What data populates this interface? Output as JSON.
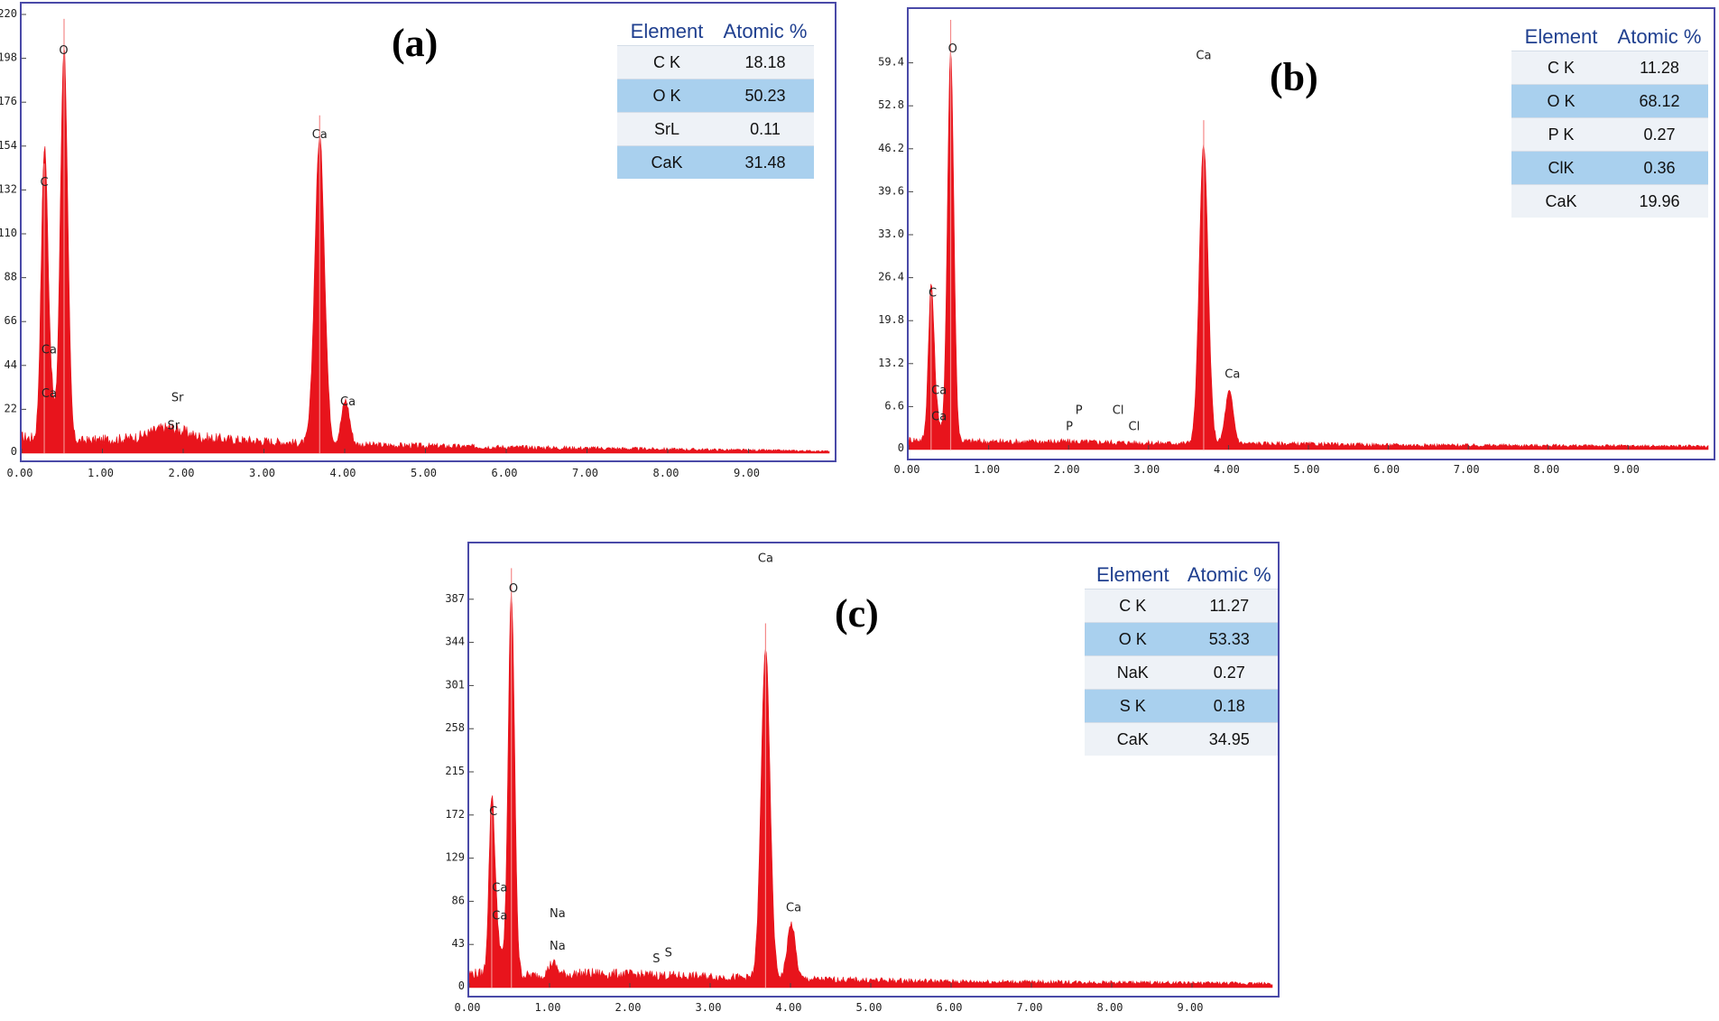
{
  "panels": [
    {
      "label": "(a)",
      "table": {
        "headers": [
          "Element",
          "Atomic %"
        ],
        "rows": [
          [
            "C K",
            "18.18"
          ],
          [
            "O K",
            "50.23"
          ],
          [
            "SrL",
            "0.11"
          ],
          [
            "CaK",
            "31.48"
          ]
        ]
      }
    },
    {
      "label": "(b)",
      "table": {
        "headers": [
          "Element",
          "Atomic %"
        ],
        "rows": [
          [
            "C K",
            "11.28"
          ],
          [
            "O K",
            "68.12"
          ],
          [
            "P K",
            "0.27"
          ],
          [
            "ClK",
            "0.36"
          ],
          [
            "CaK",
            "19.96"
          ]
        ]
      }
    },
    {
      "label": "(c)",
      "table": {
        "headers": [
          "Element",
          "Atomic %"
        ],
        "rows": [
          [
            "C K",
            "11.27"
          ],
          [
            "O K",
            "53.33"
          ],
          [
            "NaK",
            "0.27"
          ],
          [
            "S K",
            "0.18"
          ],
          [
            "CaK",
            "34.95"
          ]
        ]
      }
    }
  ],
  "chart_data": [
    {
      "type": "area",
      "panel": "a",
      "series_color": "#e8141c",
      "border_color": "#4a4aa8",
      "xlim": [
        0,
        10
      ],
      "ylim": [
        0,
        220
      ],
      "x_ticks": [
        "0.00",
        "1.00",
        "2.00",
        "3.00",
        "4.00",
        "5.00",
        "6.00",
        "7.00",
        "8.00",
        "9.00"
      ],
      "y_ticks": [
        "22",
        "44",
        "66",
        "88",
        "110",
        "132",
        "154",
        "176",
        "198",
        "220"
      ],
      "peaks": [
        {
          "x": 0.28,
          "height": 132,
          "width": 0.04
        },
        {
          "x": 0.525,
          "height": 198,
          "width": 0.045
        },
        {
          "x": 3.69,
          "height": 154,
          "width": 0.06
        },
        {
          "x": 4.01,
          "height": 22,
          "width": 0.05
        },
        {
          "x": 0.34,
          "height": 30,
          "width": 0.05
        },
        {
          "x": 1.8,
          "height": 5,
          "width": 0.2
        }
      ],
      "baseline": [
        [
          0.0,
          8
        ],
        [
          0.6,
          6
        ],
        [
          1.2,
          7
        ],
        [
          2.0,
          8
        ],
        [
          3.0,
          6
        ],
        [
          3.5,
          5
        ],
        [
          4.5,
          4
        ],
        [
          6.0,
          3
        ],
        [
          8.0,
          2
        ],
        [
          10.0,
          1
        ]
      ],
      "peak_labels": [
        {
          "text": "C",
          "x": 0.28,
          "y": 134
        },
        {
          "text": "O",
          "x": 0.52,
          "y": 200
        },
        {
          "text": "Ca",
          "x": 0.34,
          "y": 50
        },
        {
          "text": "Ca",
          "x": 0.34,
          "y": 28
        },
        {
          "text": "Sr",
          "x": 1.93,
          "y": 26
        },
        {
          "text": "Sr",
          "x": 1.88,
          "y": 12
        },
        {
          "text": "Ca",
          "x": 3.69,
          "y": 158
        },
        {
          "text": "Ca",
          "x": 4.04,
          "y": 24
        }
      ]
    },
    {
      "type": "area",
      "panel": "b",
      "series_color": "#e8141c",
      "border_color": "#4a4aa8",
      "xlim": [
        0,
        10
      ],
      "ylim": [
        0,
        66
      ],
      "x_ticks": [
        "0.00",
        "1.00",
        "2.00",
        "3.00",
        "4.00",
        "5.00",
        "6.00",
        "7.00",
        "8.00",
        "9.00"
      ],
      "y_ticks": [
        "6.6",
        "13.2",
        "19.8",
        "26.4",
        "33.0",
        "39.6",
        "46.2",
        "52.8",
        "59.4"
      ],
      "peaks": [
        {
          "x": 0.28,
          "height": 22,
          "width": 0.035
        },
        {
          "x": 0.525,
          "height": 60,
          "width": 0.04
        },
        {
          "x": 3.69,
          "height": 46,
          "width": 0.055
        },
        {
          "x": 4.01,
          "height": 8,
          "width": 0.05
        },
        {
          "x": 0.34,
          "height": 4,
          "width": 0.05
        }
      ],
      "baseline": [
        [
          0.0,
          1.5
        ],
        [
          1.0,
          1.2
        ],
        [
          2.0,
          1.2
        ],
        [
          3.0,
          1.0
        ],
        [
          4.5,
          0.9
        ],
        [
          6.0,
          0.7
        ],
        [
          8.0,
          0.6
        ],
        [
          10.0,
          0.5
        ]
      ],
      "peak_labels": [
        {
          "text": "C",
          "x": 0.3,
          "y": 23.5
        },
        {
          "text": "O",
          "x": 0.55,
          "y": 61
        },
        {
          "text": "Ca",
          "x": 0.38,
          "y": 8.5
        },
        {
          "text": "Ca",
          "x": 0.38,
          "y": 4.5
        },
        {
          "text": "P",
          "x": 2.13,
          "y": 5.5
        },
        {
          "text": "P",
          "x": 2.01,
          "y": 3.0
        },
        {
          "text": "Cl",
          "x": 2.62,
          "y": 5.5
        },
        {
          "text": "Cl",
          "x": 2.82,
          "y": 3.0
        },
        {
          "text": "Ca",
          "x": 3.69,
          "y": 60
        },
        {
          "text": "Ca",
          "x": 4.05,
          "y": 11
        }
      ]
    },
    {
      "type": "area",
      "panel": "c",
      "series_color": "#e8141c",
      "border_color": "#4a4aa8",
      "xlim": [
        0,
        10
      ],
      "ylim": [
        0,
        430
      ],
      "x_ticks": [
        "0.00",
        "1.00",
        "2.00",
        "3.00",
        "4.00",
        "5.00",
        "6.00",
        "7.00",
        "8.00",
        "9.00"
      ],
      "y_ticks": [
        "43",
        "86",
        "129",
        "172",
        "215",
        "258",
        "301",
        "344",
        "387"
      ],
      "peaks": [
        {
          "x": 0.28,
          "height": 160,
          "width": 0.035
        },
        {
          "x": 0.525,
          "height": 380,
          "width": 0.04
        },
        {
          "x": 3.69,
          "height": 330,
          "width": 0.055
        },
        {
          "x": 4.01,
          "height": 55,
          "width": 0.05
        },
        {
          "x": 1.04,
          "height": 12,
          "width": 0.05
        },
        {
          "x": 0.34,
          "height": 40,
          "width": 0.05
        }
      ],
      "baseline": [
        [
          0.0,
          14
        ],
        [
          0.8,
          12
        ],
        [
          1.5,
          14
        ],
        [
          2.5,
          12
        ],
        [
          3.4,
          10
        ],
        [
          4.5,
          8
        ],
        [
          6.0,
          6
        ],
        [
          8.0,
          5
        ],
        [
          10.0,
          4
        ]
      ],
      "peak_labels": [
        {
          "text": "C",
          "x": 0.3,
          "y": 172
        },
        {
          "text": "O",
          "x": 0.55,
          "y": 394
        },
        {
          "text": "Ca",
          "x": 0.38,
          "y": 96
        },
        {
          "text": "Ca",
          "x": 0.38,
          "y": 68
        },
        {
          "text": "Na",
          "x": 1.1,
          "y": 70
        },
        {
          "text": "Na",
          "x": 1.1,
          "y": 38
        },
        {
          "text": "S",
          "x": 2.33,
          "y": 25
        },
        {
          "text": "S",
          "x": 2.48,
          "y": 31
        },
        {
          "text": "Ca",
          "x": 3.69,
          "y": 424
        },
        {
          "text": "Ca",
          "x": 4.04,
          "y": 76
        }
      ]
    }
  ]
}
